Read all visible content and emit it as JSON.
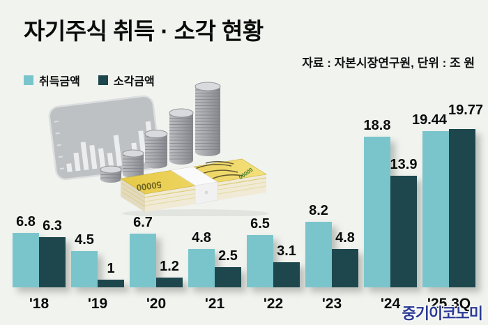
{
  "header": {
    "title": "자기주식 취득 · 소각 현황",
    "source": "자료 : 자본시장연구원, 단위 : 조 원"
  },
  "watermark": "중기이코노미",
  "illustration": {
    "note_label": "50000"
  },
  "chart_data": {
    "type": "bar",
    "categories": [
      "'18",
      "'19",
      "'20",
      "'21",
      "'22",
      "'23",
      "'24",
      "'25.3Q"
    ],
    "series": [
      {
        "name": "취득금액",
        "color": "#7ac5cc",
        "values": [
          6.8,
          4.5,
          6.7,
          4.8,
          6.5,
          8.2,
          18.8,
          19.44
        ]
      },
      {
        "name": "소각금액",
        "color": "#1d474d",
        "values": [
          6.3,
          1,
          1.2,
          2.5,
          3.1,
          4.8,
          13.9,
          19.77
        ]
      }
    ],
    "title": "자기주식 취득 · 소각 현황",
    "xlabel": "",
    "ylabel": "",
    "unit": "조 원",
    "ylim": [
      0,
      20
    ],
    "value_labels": true,
    "grid": false,
    "legend_position": "top-left",
    "colors": {
      "background": "#f1f3ef",
      "acquired": "#7ac5cc",
      "cancelled": "#1d474d",
      "watermark": "#2b3a93"
    }
  }
}
